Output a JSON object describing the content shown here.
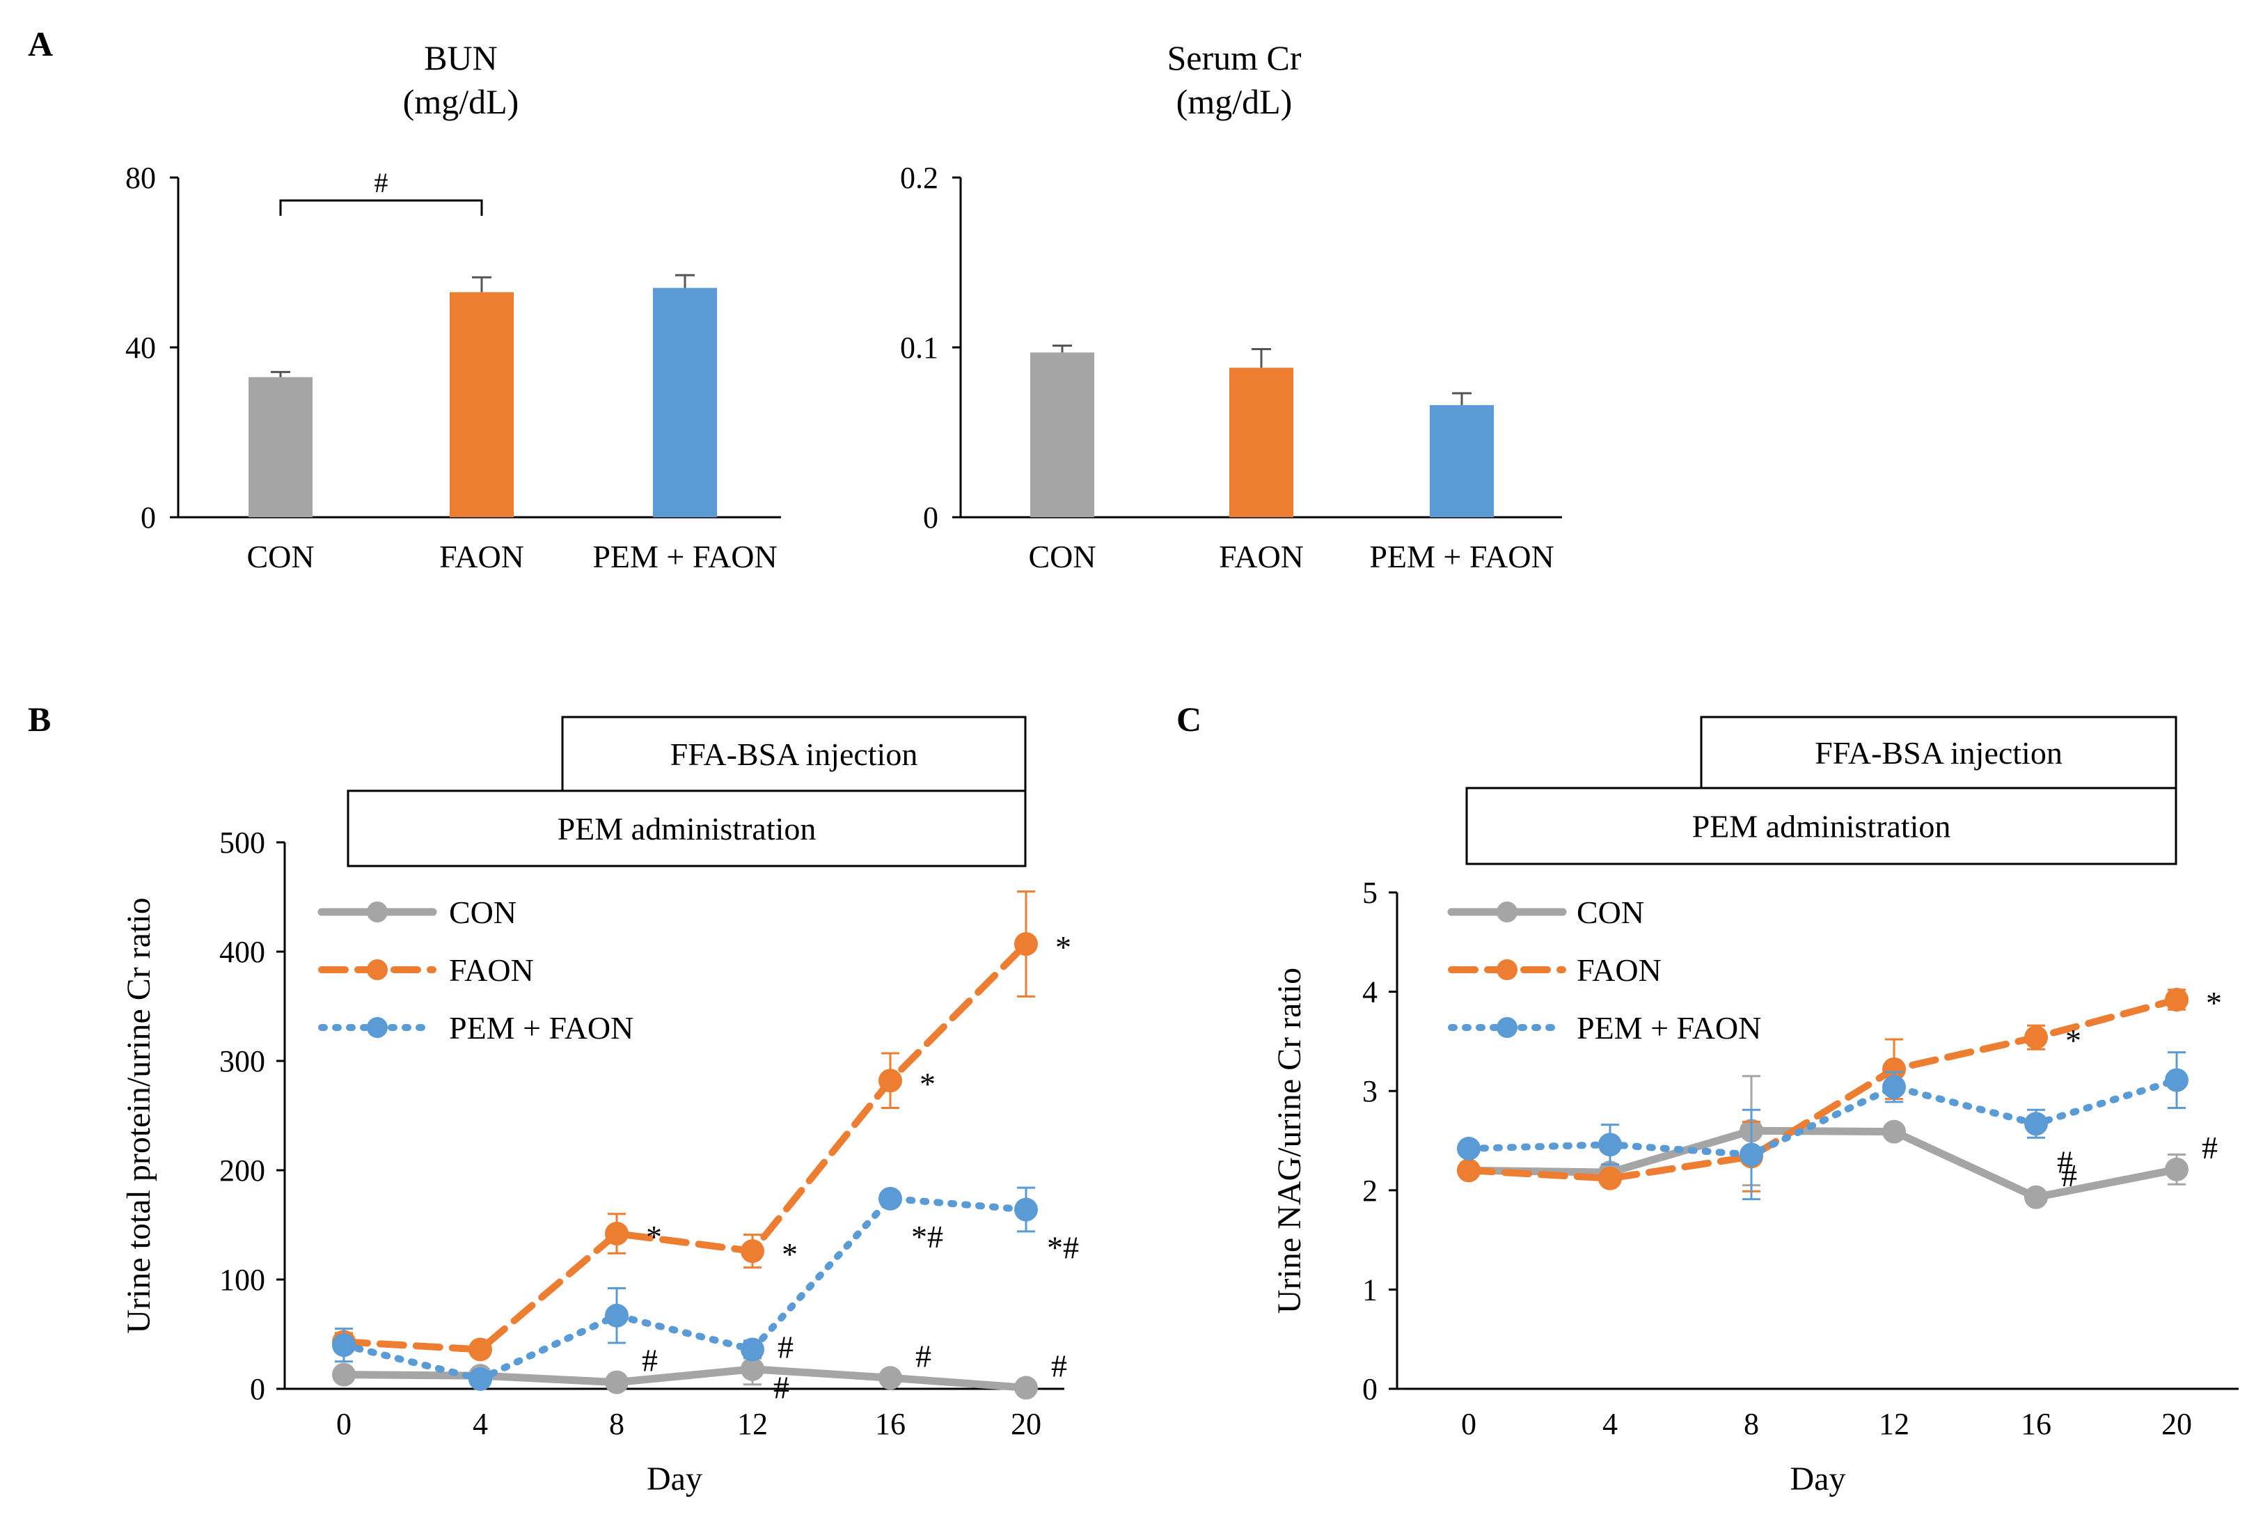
{
  "panel_labels": {
    "a": "A",
    "b": "B",
    "c": "C"
  },
  "colors": {
    "CON": "#a5a5a5",
    "FAON": "#ed7d31",
    "PEM + FAON": "#5b9bd5",
    "axis": "#000000"
  },
  "chart_data": [
    {
      "id": "bun",
      "type": "bar",
      "title": "BUN",
      "subtitle": "(mg/dL)",
      "categories": [
        "CON",
        "FAON",
        "PEM + FAON"
      ],
      "values": [
        33,
        53,
        54
      ],
      "errors": [
        1.2,
        3.5,
        3.0
      ],
      "ylim": [
        0,
        80
      ],
      "yticks": [
        0,
        40,
        80
      ],
      "ytick_labels": [
        "0",
        "40",
        "80"
      ],
      "significance": [
        {
          "from": 0,
          "to": 1,
          "label": "#"
        }
      ]
    },
    {
      "id": "cr",
      "type": "bar",
      "title": "Serum Cr",
      "subtitle": "(mg/dL)",
      "categories": [
        "CON",
        "FAON",
        "PEM + FAON"
      ],
      "values": [
        0.097,
        0.088,
        0.066
      ],
      "errors": [
        0.004,
        0.011,
        0.007
      ],
      "ylim": [
        0,
        0.2
      ],
      "yticks": [
        0,
        0.1,
        0.2
      ],
      "ytick_labels": [
        "0",
        "0.1",
        "0.2"
      ]
    },
    {
      "id": "protein",
      "type": "line",
      "ylabel": "Urine total protein/urine Cr ratio",
      "xlabel": "Day",
      "x": [
        0,
        4,
        8,
        12,
        16,
        20
      ],
      "xlim": [
        0,
        20
      ],
      "ylim": [
        0,
        500
      ],
      "yticks": [
        0,
        100,
        200,
        300,
        400,
        500
      ],
      "legend_position": "top-left",
      "boxes": {
        "injection": "FFA-BSA injection",
        "administration": "PEM administration"
      },
      "series": [
        {
          "name": "CON",
          "style": "solid",
          "values": [
            13,
            12,
            6,
            18,
            10,
            1
          ],
          "errors": [
            3,
            3,
            4,
            14,
            4,
            1
          ],
          "annotations": [
            "",
            "",
            "#",
            "#",
            "#",
            "#"
          ]
        },
        {
          "name": "FAON",
          "style": "dashed",
          "values": [
            43,
            36,
            142,
            126,
            282,
            407
          ],
          "errors": [
            8,
            4,
            18,
            15,
            25,
            48
          ],
          "annotations": [
            "",
            "",
            "*",
            "*",
            "*",
            "*"
          ]
        },
        {
          "name": "PEM + FAON",
          "style": "dotted",
          "values": [
            40,
            9,
            67,
            36,
            174,
            164
          ],
          "errors": [
            15,
            4,
            25,
            8,
            5,
            20
          ],
          "annotations": [
            "",
            "",
            "",
            "#",
            "*#",
            "*#"
          ]
        }
      ]
    },
    {
      "id": "nag",
      "type": "line",
      "ylabel": "Urine NAG/urine Cr ratio",
      "xlabel": "Day",
      "x": [
        0,
        4,
        8,
        12,
        16,
        20
      ],
      "xlim": [
        0,
        20
      ],
      "ylim": [
        0,
        5
      ],
      "yticks": [
        0,
        1,
        2,
        3,
        4,
        5
      ],
      "legend_position": "top-left",
      "boxes": {
        "injection": "FFA-BSA injection",
        "administration": "PEM administration"
      },
      "series": [
        {
          "name": "CON",
          "style": "solid",
          "values": [
            2.2,
            2.18,
            2.6,
            2.59,
            1.93,
            2.21
          ],
          "errors": [
            0.06,
            0.05,
            0.55,
            0.04,
            0.05,
            0.15
          ],
          "annotations": [
            "",
            "",
            "",
            "",
            "#",
            "#"
          ]
        },
        {
          "name": "FAON",
          "style": "dashed",
          "values": [
            2.2,
            2.12,
            2.34,
            3.22,
            3.54,
            3.92
          ],
          "errors": [
            0.05,
            0.06,
            0.35,
            0.3,
            0.12,
            0.1
          ],
          "annotations": [
            "",
            "",
            "",
            "",
            "*",
            "*"
          ]
        },
        {
          "name": "PEM + FAON",
          "style": "dotted",
          "values": [
            2.42,
            2.46,
            2.36,
            3.04,
            2.67,
            3.11
          ],
          "errors": [
            0.05,
            0.2,
            0.45,
            0.15,
            0.14,
            0.28
          ],
          "annotations": [
            "",
            "",
            "",
            "",
            "#",
            ""
          ]
        }
      ]
    }
  ]
}
